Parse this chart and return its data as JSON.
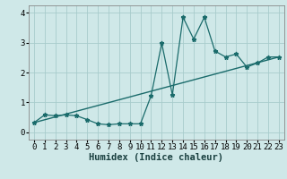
{
  "xlabel": "Humidex (Indice chaleur)",
  "bg_color": "#cfe8e8",
  "grid_color": "#a8cccc",
  "line_color": "#1a6b6b",
  "xlim": [
    -0.5,
    23.5
  ],
  "ylim": [
    -0.25,
    4.25
  ],
  "xticks": [
    0,
    1,
    2,
    3,
    4,
    5,
    6,
    7,
    8,
    9,
    10,
    11,
    12,
    13,
    14,
    15,
    16,
    17,
    18,
    19,
    20,
    21,
    22,
    23
  ],
  "yticks": [
    0,
    1,
    2,
    3,
    4
  ],
  "curve_x": [
    0,
    1,
    2,
    3,
    4,
    5,
    6,
    7,
    8,
    9,
    10,
    11,
    12,
    13,
    14,
    15,
    16,
    17,
    18,
    19,
    20,
    21,
    22,
    23
  ],
  "curve_y": [
    0.32,
    0.58,
    0.55,
    0.58,
    0.55,
    0.42,
    0.28,
    0.25,
    0.28,
    0.28,
    0.28,
    1.22,
    2.98,
    1.25,
    3.85,
    3.12,
    3.85,
    2.72,
    2.52,
    2.62,
    2.18,
    2.32,
    2.52,
    2.52
  ],
  "trend_x": [
    0,
    23
  ],
  "trend_y": [
    0.32,
    2.52
  ],
  "tick_fontsize": 6.5,
  "label_fontsize": 7.5
}
